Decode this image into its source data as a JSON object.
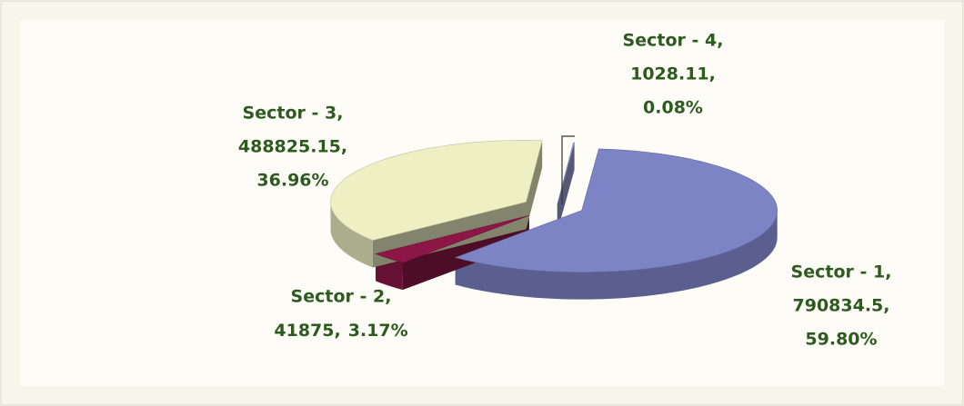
{
  "chart_data": {
    "type": "pie",
    "categories": [
      "Sector - 1,",
      "Sector - 2,",
      "Sector - 3,",
      "Sector - 4,"
    ],
    "values": [
      790834.5,
      41875,
      488825.15,
      1028.11
    ],
    "value_labels": [
      "790834.5,",
      "41875,",
      "488825.15,",
      "1028.11,"
    ],
    "percents": [
      59.8,
      3.17,
      36.96,
      0.08
    ],
    "percent_labels": [
      "59.80%",
      "3.17%",
      "36.96%",
      "0.08%"
    ],
    "colors": [
      "#7d84c6",
      "#8c1747",
      "#eef0c4",
      "#9aa0d8"
    ]
  }
}
